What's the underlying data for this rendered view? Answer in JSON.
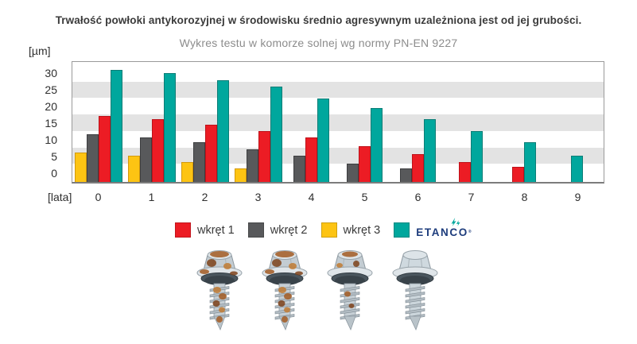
{
  "title": "Trwałość powłoki antykorozyjnej w środowisku średnio agresywnym uzależniona jest od jej grubości.",
  "subtitle": "Wykres testu w komorze solnej wg normy PN-EN 9227",
  "axes": {
    "y_unit": "[µm]",
    "x_unit": "[lata]"
  },
  "chart_data": {
    "type": "bar",
    "title": "Trwałość powłoki antykorozyjnej w środowisku średnio agresywnym uzależniona jest od jej grubości.",
    "subtitle": "Wykres testu w komorze solnej wg normy PN-EN 9227",
    "ylabel": "[µm]",
    "xlabel": "[lata]",
    "categories": [
      "0",
      "1",
      "2",
      "3",
      "4",
      "5",
      "6",
      "7",
      "8",
      "9"
    ],
    "yticks": [
      30,
      25,
      20,
      15,
      10,
      5,
      0
    ],
    "render_ylim": [
      -3,
      33.5
    ],
    "grid": "horizontal-stripes",
    "stripes": [
      [
        2.5,
        7.5
      ],
      [
        12.5,
        17.5
      ],
      [
        22.5,
        27.5
      ]
    ],
    "stripe_color": "#e3e3e3",
    "legend_position": "bottom",
    "series": [
      {
        "name": "wkręt 3",
        "color": "#fdc413",
        "border": "#d2990d",
        "values": [
          6,
          5,
          3,
          1,
          null,
          null,
          null,
          null,
          null,
          null
        ]
      },
      {
        "name": "wkręt 2",
        "color": "#58595b",
        "border": "#3d3e40",
        "values": [
          11.5,
          10.5,
          9,
          7,
          5,
          2.5,
          1,
          null,
          null,
          null
        ]
      },
      {
        "name": "wkręt 1",
        "color": "#ec1c24",
        "border": "#bd121a",
        "values": [
          17,
          16,
          14.5,
          12.5,
          10.5,
          8,
          5.5,
          3,
          1.5,
          null
        ]
      },
      {
        "name": "ETANCO",
        "color": "#00a79d",
        "border": "#0a7d76",
        "values": [
          31,
          30,
          28,
          26,
          22.5,
          19.5,
          16,
          12.5,
          9,
          5
        ]
      }
    ],
    "legend": [
      {
        "label": "wkręt 1",
        "color": "#ec1c24",
        "logo": false
      },
      {
        "label": "wkręt 2",
        "color": "#58595b",
        "logo": false
      },
      {
        "label": "wkręt 3",
        "color": "#fdc413",
        "logo": false
      },
      {
        "label": "ETANCO",
        "color": "#00a79d",
        "logo": true
      }
    ]
  },
  "logo": {
    "text": "ETANCO",
    "reg": "®",
    "text_color": "#1d3c7c",
    "icon_color": "#00a79d"
  },
  "screw_photos": [
    {
      "rust": "heavy"
    },
    {
      "rust": "heavy"
    },
    {
      "rust": "medium"
    },
    {
      "rust": "clean"
    }
  ]
}
